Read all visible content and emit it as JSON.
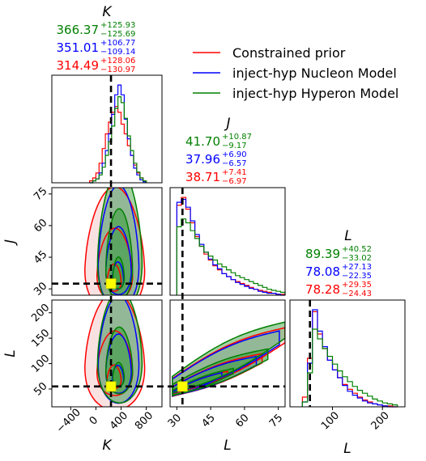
{
  "chart_data": {
    "type": "corner",
    "parameters": [
      "K",
      "J",
      "L"
    ],
    "axis_labels": {
      "K": "K",
      "J": "J",
      "L": "L"
    },
    "ticks": {
      "K": {
        "values": [
          -400,
          0,
          400,
          800
        ],
        "labels": [
          "−400",
          "0",
          "400",
          "800"
        ]
      },
      "J": {
        "values": [
          30,
          45,
          60,
          75
        ],
        "labels": [
          "30",
          "45",
          "60",
          "75"
        ]
      },
      "L": {
        "values": [
          50,
          100,
          150,
          200
        ],
        "labels": [
          "50",
          "100",
          "150",
          "200"
        ]
      },
      "L_hist": {
        "values": [
          100,
          200
        ],
        "labels": [
          "100",
          "200"
        ]
      }
    },
    "ranges": {
      "K": [
        -700,
        1050
      ],
      "J": [
        27,
        78
      ],
      "L": [
        15,
        225
      ],
      "L_hist": [
        15,
        245
      ]
    },
    "injected": {
      "K": 240,
      "J": 32.5,
      "L": 55
    },
    "legend": [
      {
        "name": "Constrained prior",
        "color": "#ff0000"
      },
      {
        "name": "inject-hyp Nucleon Model",
        "color": "#0000ff"
      },
      {
        "name": "inject-hyp Hyperon Model",
        "color": "#008000"
      }
    ],
    "stats": {
      "K": [
        {
          "median": "366.37",
          "plus": "+125.93",
          "minus": "−125.69",
          "color": "#008000"
        },
        {
          "median": "351.01",
          "plus": "+106.77",
          "minus": "−109.14",
          "color": "#0000ff"
        },
        {
          "median": "314.49",
          "plus": "+128.06",
          "minus": "−130.97",
          "color": "#ff0000"
        }
      ],
      "J": [
        {
          "median": "41.70",
          "plus": "+10.87",
          "minus": "−9.17",
          "color": "#008000"
        },
        {
          "median": "37.96",
          "plus": "+6.90",
          "minus": "−6.57",
          "color": "#0000ff"
        },
        {
          "median": "38.71",
          "plus": "+7.41",
          "minus": "−6.97",
          "color": "#ff0000"
        }
      ],
      "L": [
        {
          "median": "89.39",
          "plus": "+40.52",
          "minus": "−33.02",
          "color": "#008000"
        },
        {
          "median": "78.08",
          "plus": "+27.13",
          "minus": "−22.35",
          "color": "#0000ff"
        },
        {
          "median": "78.28",
          "plus": "+29.35",
          "minus": "−24.43",
          "color": "#ff0000"
        }
      ]
    },
    "hist_K": {
      "bins": [
        -100,
        -50,
        0,
        50,
        100,
        150,
        200,
        250,
        300,
        350,
        400,
        450,
        500,
        550,
        600,
        650,
        700,
        750,
        800
      ],
      "series": [
        {
          "name": "Constrained prior",
          "color": "#ff0000",
          "values": [
            0.02,
            0.05,
            0.1,
            0.2,
            0.35,
            0.5,
            0.62,
            0.72,
            0.78,
            0.72,
            0.6,
            0.5,
            0.38,
            0.28,
            0.18,
            0.1,
            0.05,
            0.02
          ]
        },
        {
          "name": "inject-hyp Nucleon Model",
          "color": "#0000ff",
          "values": [
            0.0,
            0.02,
            0.04,
            0.1,
            0.2,
            0.33,
            0.5,
            0.7,
            0.9,
            1.0,
            0.9,
            0.65,
            0.45,
            0.28,
            0.15,
            0.08,
            0.03,
            0.01
          ]
        },
        {
          "name": "inject-hyp Hyperon Model",
          "color": "#008000",
          "values": [
            0.0,
            0.02,
            0.04,
            0.08,
            0.16,
            0.28,
            0.42,
            0.58,
            0.76,
            0.88,
            0.82,
            0.66,
            0.48,
            0.33,
            0.2,
            0.11,
            0.05,
            0.02
          ]
        }
      ]
    },
    "hist_J": {
      "bins": [
        30,
        32,
        34,
        36,
        38,
        40,
        42,
        44,
        46,
        48,
        50,
        52,
        54,
        56,
        58,
        60,
        62,
        64,
        66,
        68,
        70,
        72,
        74,
        76,
        78
      ],
      "series": [
        {
          "name": "Constrained prior",
          "color": "#ff0000",
          "values": [
            0.92,
            1.0,
            0.88,
            0.74,
            0.6,
            0.5,
            0.42,
            0.36,
            0.3,
            0.26,
            0.22,
            0.19,
            0.16,
            0.14,
            0.12,
            0.1,
            0.08,
            0.06,
            0.05,
            0.04,
            0.03,
            0.02,
            0.01,
            0.01
          ]
        },
        {
          "name": "inject-hyp Nucleon Model",
          "color": "#0000ff",
          "values": [
            0.95,
            0.98,
            0.9,
            0.76,
            0.62,
            0.52,
            0.44,
            0.37,
            0.31,
            0.27,
            0.22,
            0.19,
            0.16,
            0.13,
            0.11,
            0.09,
            0.07,
            0.06,
            0.04,
            0.03,
            0.02,
            0.02,
            0.01,
            0.0
          ]
        },
        {
          "name": "inject-hyp Hyperon Model",
          "color": "#008000",
          "values": [
            0.7,
            0.78,
            0.74,
            0.66,
            0.58,
            0.5,
            0.44,
            0.4,
            0.36,
            0.32,
            0.29,
            0.26,
            0.23,
            0.2,
            0.18,
            0.16,
            0.14,
            0.12,
            0.1,
            0.08,
            0.06,
            0.05,
            0.04,
            0.03
          ]
        }
      ]
    },
    "hist_L": {
      "bins": [
        40,
        50,
        60,
        70,
        80,
        90,
        100,
        110,
        120,
        130,
        140,
        150,
        160,
        170,
        180,
        190,
        200,
        210,
        220,
        230
      ],
      "series": [
        {
          "name": "Constrained prior",
          "color": "#ff0000",
          "values": [
            0.1,
            0.5,
            0.98,
            0.75,
            0.6,
            0.48,
            0.38,
            0.3,
            0.23,
            0.18,
            0.14,
            0.1,
            0.07,
            0.05,
            0.03,
            0.02,
            0.01,
            0.01,
            0.0
          ]
        },
        {
          "name": "inject-hyp Nucleon Model",
          "color": "#0000ff",
          "values": [
            0.05,
            0.45,
            1.0,
            0.78,
            0.62,
            0.48,
            0.38,
            0.3,
            0.22,
            0.16,
            0.12,
            0.09,
            0.06,
            0.04,
            0.03,
            0.02,
            0.01,
            0.0,
            0.0
          ]
        },
        {
          "name": "inject-hyp Hyperon Model",
          "color": "#008000",
          "values": [
            0.05,
            0.35,
            0.8,
            0.7,
            0.6,
            0.52,
            0.44,
            0.37,
            0.31,
            0.26,
            0.21,
            0.17,
            0.14,
            0.11,
            0.08,
            0.06,
            0.04,
            0.03,
            0.02
          ]
        }
      ]
    },
    "contours_KJ": [
      {
        "model": "Constrained prior",
        "color": "#ff0000",
        "fill": "#f4b6b6",
        "levels": [
          {
            "cx": 300,
            "cy": 42,
            "rx": 470,
            "ry": 28,
            "skew": 0.5
          },
          {
            "cx": 300,
            "cy": 38,
            "rx": 280,
            "ry": 16,
            "skew": 0.5
          },
          {
            "cx": 290,
            "cy": 34,
            "rx": 110,
            "ry": 6,
            "skew": 0.5
          }
        ]
      },
      {
        "model": "inject-hyp Nucleon Model",
        "color": "#0000ff",
        "fill": "#b9b9ef",
        "levels": [
          {
            "cx": 360,
            "cy": 44,
            "rx": 320,
            "ry": 27,
            "skew": 0.5
          },
          {
            "cx": 360,
            "cy": 40,
            "rx": 200,
            "ry": 15,
            "skew": 0.5
          },
          {
            "cx": 350,
            "cy": 35,
            "rx": 90,
            "ry": 6,
            "skew": 0.5
          }
        ]
      },
      {
        "model": "inject-hyp Hyperon Model",
        "color": "#008000",
        "fill": "#3d9e3d",
        "levels": [
          {
            "cx": 380,
            "cy": 46,
            "rx": 350,
            "ry": 31,
            "skew": 0.5
          },
          {
            "cx": 370,
            "cy": 42,
            "rx": 210,
            "ry": 20,
            "skew": 0.5
          },
          {
            "cx": 360,
            "cy": 36,
            "rx": 90,
            "ry": 7,
            "skew": 0.5
          }
        ]
      }
    ],
    "contours_KL": [
      {
        "model": "Constrained prior",
        "color": "#ff0000",
        "fill": "#f4b6b6",
        "levels": [
          {
            "cx": 300,
            "cy": 105,
            "rx": 470,
            "ry": 110,
            "skew": 0.4
          },
          {
            "cx": 300,
            "cy": 90,
            "rx": 280,
            "ry": 60,
            "skew": 0.4
          },
          {
            "cx": 290,
            "cy": 70,
            "rx": 110,
            "ry": 22,
            "skew": 0.4
          }
        ]
      },
      {
        "model": "inject-hyp Nucleon Model",
        "color": "#0000ff",
        "fill": "#b9b9ef",
        "levels": [
          {
            "cx": 360,
            "cy": 110,
            "rx": 320,
            "ry": 100,
            "skew": 0.4
          },
          {
            "cx": 360,
            "cy": 90,
            "rx": 200,
            "ry": 55,
            "skew": 0.4
          },
          {
            "cx": 350,
            "cy": 72,
            "rx": 90,
            "ry": 20,
            "skew": 0.4
          }
        ]
      },
      {
        "model": "inject-hyp Hyperon Model",
        "color": "#008000",
        "fill": "#3d9e3d",
        "levels": [
          {
            "cx": 380,
            "cy": 115,
            "rx": 350,
            "ry": 105,
            "skew": 0.4
          },
          {
            "cx": 370,
            "cy": 95,
            "rx": 210,
            "ry": 62,
            "skew": 0.4
          },
          {
            "cx": 360,
            "cy": 75,
            "rx": 90,
            "ry": 22,
            "skew": 0.4
          }
        ]
      }
    ],
    "contours_JL": [
      {
        "model": "Constrained prior",
        "color": "#ff0000",
        "fill": "#f4b6b6",
        "levels": [
          {
            "a": 55,
            "b": 155,
            "w": 26,
            "t0": 0.0,
            "t1": 1.0
          },
          {
            "a": 45,
            "b": 110,
            "w": 16,
            "t0": 0.0,
            "t1": 0.8
          },
          {
            "a": 40,
            "b": 80,
            "w": 8,
            "t0": 0.0,
            "t1": 0.5
          }
        ]
      },
      {
        "model": "inject-hyp Nucleon Model",
        "color": "#0000ff",
        "fill": "#b9b9ef",
        "levels": [
          {
            "a": 55,
            "b": 150,
            "w": 24,
            "t0": 0.0,
            "t1": 0.95
          },
          {
            "a": 45,
            "b": 105,
            "w": 15,
            "t0": 0.0,
            "t1": 0.75
          },
          {
            "a": 40,
            "b": 78,
            "w": 7,
            "t0": 0.0,
            "t1": 0.45
          }
        ]
      },
      {
        "model": "inject-hyp Hyperon Model",
        "color": "#008000",
        "fill": "#3d9e3d",
        "levels": [
          {
            "a": 58,
            "b": 165,
            "w": 28,
            "t0": 0.0,
            "t1": 1.0
          },
          {
            "a": 48,
            "b": 118,
            "w": 18,
            "t0": 0.0,
            "t1": 0.85
          },
          {
            "a": 42,
            "b": 85,
            "w": 9,
            "t0": 0.0,
            "t1": 0.55
          }
        ]
      }
    ]
  }
}
